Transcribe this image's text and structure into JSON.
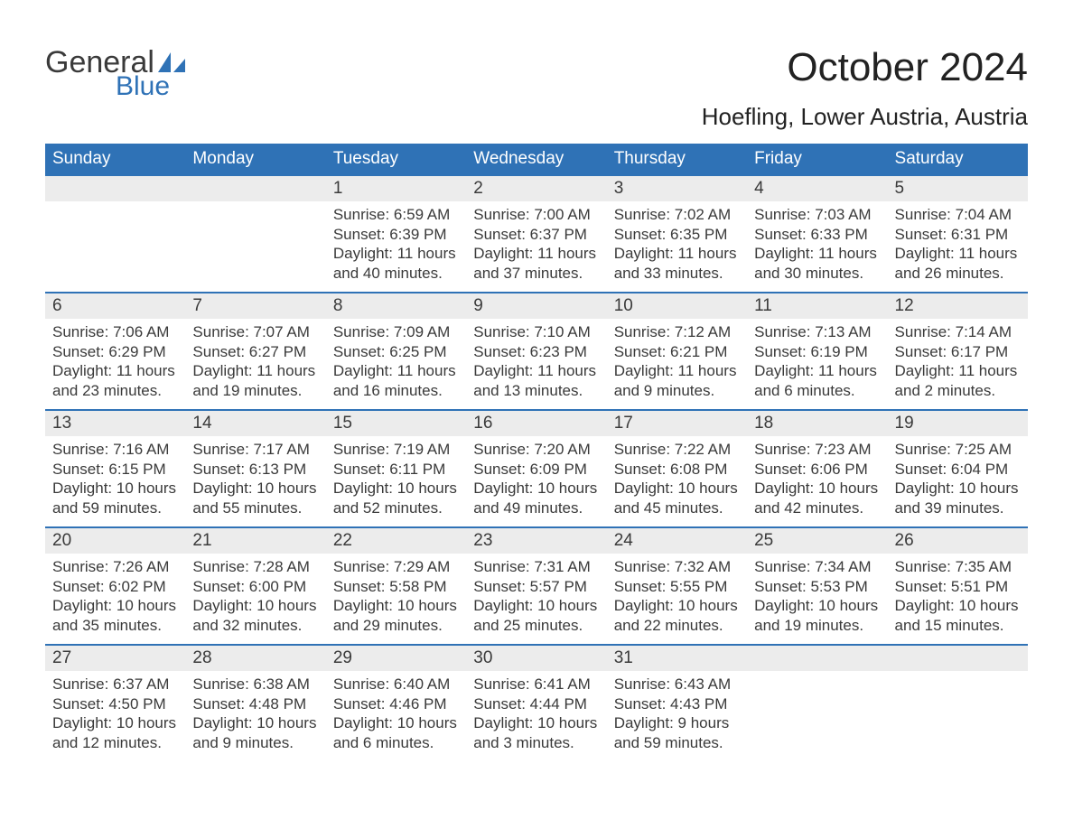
{
  "brand": {
    "general": "General",
    "blue": "Blue"
  },
  "title": "October 2024",
  "location": "Hoefling, Lower Austria, Austria",
  "colors": {
    "header_bg": "#2f72b6",
    "header_text": "#ffffff",
    "daynum_bg": "#ececec",
    "body_text": "#3a3a3a",
    "page_bg": "#ffffff",
    "rule": "#2f72b6"
  },
  "weekdays": [
    "Sunday",
    "Monday",
    "Tuesday",
    "Wednesday",
    "Thursday",
    "Friday",
    "Saturday"
  ],
  "weeks": [
    [
      null,
      null,
      {
        "n": "1",
        "sr": "Sunrise: 6:59 AM",
        "ss": "Sunset: 6:39 PM",
        "dl": "Daylight: 11 hours and 40 minutes."
      },
      {
        "n": "2",
        "sr": "Sunrise: 7:00 AM",
        "ss": "Sunset: 6:37 PM",
        "dl": "Daylight: 11 hours and 37 minutes."
      },
      {
        "n": "3",
        "sr": "Sunrise: 7:02 AM",
        "ss": "Sunset: 6:35 PM",
        "dl": "Daylight: 11 hours and 33 minutes."
      },
      {
        "n": "4",
        "sr": "Sunrise: 7:03 AM",
        "ss": "Sunset: 6:33 PM",
        "dl": "Daylight: 11 hours and 30 minutes."
      },
      {
        "n": "5",
        "sr": "Sunrise: 7:04 AM",
        "ss": "Sunset: 6:31 PM",
        "dl": "Daylight: 11 hours and 26 minutes."
      }
    ],
    [
      {
        "n": "6",
        "sr": "Sunrise: 7:06 AM",
        "ss": "Sunset: 6:29 PM",
        "dl": "Daylight: 11 hours and 23 minutes."
      },
      {
        "n": "7",
        "sr": "Sunrise: 7:07 AM",
        "ss": "Sunset: 6:27 PM",
        "dl": "Daylight: 11 hours and 19 minutes."
      },
      {
        "n": "8",
        "sr": "Sunrise: 7:09 AM",
        "ss": "Sunset: 6:25 PM",
        "dl": "Daylight: 11 hours and 16 minutes."
      },
      {
        "n": "9",
        "sr": "Sunrise: 7:10 AM",
        "ss": "Sunset: 6:23 PM",
        "dl": "Daylight: 11 hours and 13 minutes."
      },
      {
        "n": "10",
        "sr": "Sunrise: 7:12 AM",
        "ss": "Sunset: 6:21 PM",
        "dl": "Daylight: 11 hours and 9 minutes."
      },
      {
        "n": "11",
        "sr": "Sunrise: 7:13 AM",
        "ss": "Sunset: 6:19 PM",
        "dl": "Daylight: 11 hours and 6 minutes."
      },
      {
        "n": "12",
        "sr": "Sunrise: 7:14 AM",
        "ss": "Sunset: 6:17 PM",
        "dl": "Daylight: 11 hours and 2 minutes."
      }
    ],
    [
      {
        "n": "13",
        "sr": "Sunrise: 7:16 AM",
        "ss": "Sunset: 6:15 PM",
        "dl": "Daylight: 10 hours and 59 minutes."
      },
      {
        "n": "14",
        "sr": "Sunrise: 7:17 AM",
        "ss": "Sunset: 6:13 PM",
        "dl": "Daylight: 10 hours and 55 minutes."
      },
      {
        "n": "15",
        "sr": "Sunrise: 7:19 AM",
        "ss": "Sunset: 6:11 PM",
        "dl": "Daylight: 10 hours and 52 minutes."
      },
      {
        "n": "16",
        "sr": "Sunrise: 7:20 AM",
        "ss": "Sunset: 6:09 PM",
        "dl": "Daylight: 10 hours and 49 minutes."
      },
      {
        "n": "17",
        "sr": "Sunrise: 7:22 AM",
        "ss": "Sunset: 6:08 PM",
        "dl": "Daylight: 10 hours and 45 minutes."
      },
      {
        "n": "18",
        "sr": "Sunrise: 7:23 AM",
        "ss": "Sunset: 6:06 PM",
        "dl": "Daylight: 10 hours and 42 minutes."
      },
      {
        "n": "19",
        "sr": "Sunrise: 7:25 AM",
        "ss": "Sunset: 6:04 PM",
        "dl": "Daylight: 10 hours and 39 minutes."
      }
    ],
    [
      {
        "n": "20",
        "sr": "Sunrise: 7:26 AM",
        "ss": "Sunset: 6:02 PM",
        "dl": "Daylight: 10 hours and 35 minutes."
      },
      {
        "n": "21",
        "sr": "Sunrise: 7:28 AM",
        "ss": "Sunset: 6:00 PM",
        "dl": "Daylight: 10 hours and 32 minutes."
      },
      {
        "n": "22",
        "sr": "Sunrise: 7:29 AM",
        "ss": "Sunset: 5:58 PM",
        "dl": "Daylight: 10 hours and 29 minutes."
      },
      {
        "n": "23",
        "sr": "Sunrise: 7:31 AM",
        "ss": "Sunset: 5:57 PM",
        "dl": "Daylight: 10 hours and 25 minutes."
      },
      {
        "n": "24",
        "sr": "Sunrise: 7:32 AM",
        "ss": "Sunset: 5:55 PM",
        "dl": "Daylight: 10 hours and 22 minutes."
      },
      {
        "n": "25",
        "sr": "Sunrise: 7:34 AM",
        "ss": "Sunset: 5:53 PM",
        "dl": "Daylight: 10 hours and 19 minutes."
      },
      {
        "n": "26",
        "sr": "Sunrise: 7:35 AM",
        "ss": "Sunset: 5:51 PM",
        "dl": "Daylight: 10 hours and 15 minutes."
      }
    ],
    [
      {
        "n": "27",
        "sr": "Sunrise: 6:37 AM",
        "ss": "Sunset: 4:50 PM",
        "dl": "Daylight: 10 hours and 12 minutes."
      },
      {
        "n": "28",
        "sr": "Sunrise: 6:38 AM",
        "ss": "Sunset: 4:48 PM",
        "dl": "Daylight: 10 hours and 9 minutes."
      },
      {
        "n": "29",
        "sr": "Sunrise: 6:40 AM",
        "ss": "Sunset: 4:46 PM",
        "dl": "Daylight: 10 hours and 6 minutes."
      },
      {
        "n": "30",
        "sr": "Sunrise: 6:41 AM",
        "ss": "Sunset: 4:44 PM",
        "dl": "Daylight: 10 hours and 3 minutes."
      },
      {
        "n": "31",
        "sr": "Sunrise: 6:43 AM",
        "ss": "Sunset: 4:43 PM",
        "dl": "Daylight: 9 hours and 59 minutes."
      },
      null,
      null
    ]
  ]
}
